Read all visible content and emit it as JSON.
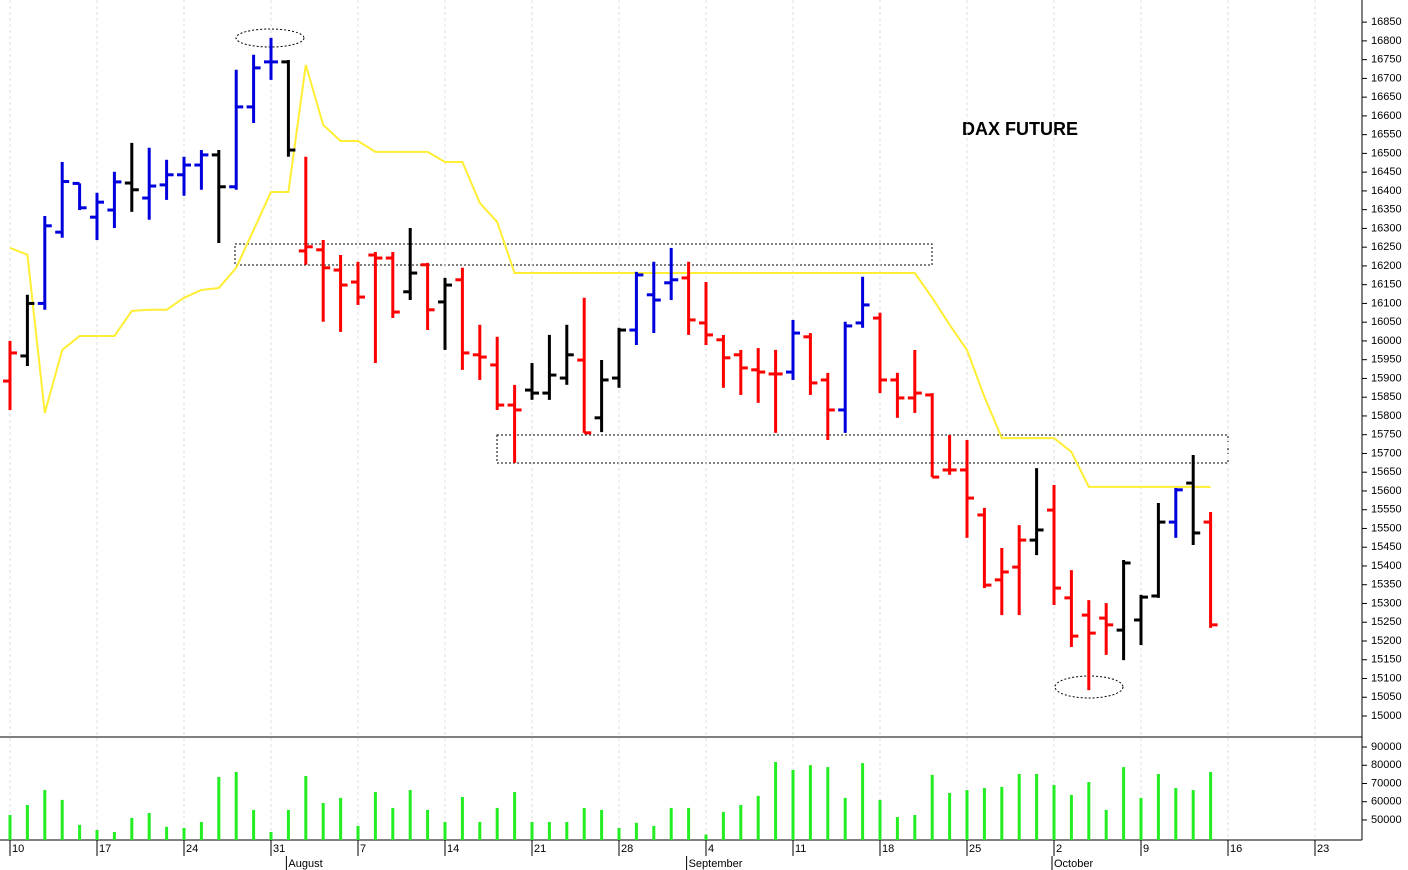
{
  "chart_data": {
    "type": "ohlc",
    "title": "DAX FUTURE",
    "categories": [
      "10",
      null,
      null,
      null,
      null,
      "17",
      null,
      null,
      null,
      null,
      "24",
      null,
      null,
      null,
      null,
      "31",
      null,
      null,
      null,
      null,
      "7",
      null,
      null,
      null,
      null,
      "14",
      null,
      null,
      null,
      null,
      "21",
      null,
      null,
      null,
      null,
      "28",
      null,
      null,
      null,
      null,
      "4",
      null,
      null,
      null,
      null,
      "11",
      null,
      null,
      null,
      null,
      "18",
      null,
      null,
      null,
      null,
      "25",
      null,
      null,
      null,
      null,
      "2",
      null,
      null,
      null,
      null,
      "9",
      null,
      null,
      null,
      null,
      "16",
      null,
      null,
      null,
      null,
      "23",
      null,
      null
    ],
    "months": [
      null,
      null,
      null,
      null,
      null,
      null,
      null,
      null,
      null,
      null,
      null,
      null,
      null,
      null,
      null,
      null,
      "August",
      null,
      null,
      null,
      null,
      null,
      null,
      null,
      null,
      null,
      null,
      null,
      null,
      null,
      null,
      null,
      null,
      null,
      null,
      null,
      null,
      null,
      null,
      "September",
      null,
      null,
      null,
      null,
      null,
      null,
      null,
      null,
      null,
      null,
      null,
      null,
      null,
      null,
      null,
      null,
      null,
      null,
      null,
      null,
      "October",
      null,
      null,
      null,
      null,
      null,
      null,
      null,
      null,
      null,
      null,
      null,
      null,
      null,
      null,
      null,
      null,
      null
    ],
    "ohlc": {
      "open": [
        15893,
        15960,
        16100,
        16290,
        16420,
        16330,
        16349,
        16421,
        16381,
        16416,
        16443,
        16469,
        16496,
        16411,
        16624,
        16744,
        16744,
        16240,
        16243,
        16189,
        16157,
        16229,
        16221,
        16131,
        16203,
        16104,
        16163,
        15963,
        15936,
        15829,
        15869,
        15861,
        15901,
        15949,
        15795,
        15901,
        16029,
        16123,
        16155,
        16168,
        16048,
        16003,
        15963,
        15923,
        15912,
        15917,
        16011,
        15896,
        15816,
        16048,
        16061,
        15896,
        15848,
        15856,
        15656,
        15656,
        15536,
        15363,
        15397,
        15469,
        15549,
        15315,
        15269,
        15261,
        15229,
        15256,
        15320,
        15517,
        15621,
        15517,
        null,
        null,
        null,
        null,
        null,
        null,
        null,
        null
      ],
      "high": [
        16000,
        16123,
        16333,
        16477,
        16420,
        16395,
        16451,
        16528,
        16515,
        16483,
        16491,
        16509,
        16509,
        16723,
        16763,
        16808,
        16749,
        16491,
        16269,
        16229,
        16211,
        16237,
        16237,
        16301,
        16208,
        16168,
        16195,
        16043,
        16011,
        15883,
        15941,
        16016,
        16043,
        16115,
        15949,
        16035,
        16184,
        16211,
        16248,
        16211,
        16157,
        16016,
        15976,
        15981,
        15976,
        16056,
        16021,
        15915,
        16051,
        16171,
        16075,
        15915,
        15976,
        15861,
        15749,
        15736,
        15555,
        15448,
        15509,
        15661,
        15616,
        15389,
        15309,
        15301,
        15416,
        15323,
        15568,
        15608,
        15696,
        15544,
        null,
        null,
        null,
        null,
        null,
        null,
        null,
        null
      ],
      "low": [
        15816,
        15933,
        16083,
        16275,
        16349,
        16269,
        16301,
        16344,
        16323,
        16376,
        16387,
        16403,
        16261,
        16403,
        16581,
        16696,
        16491,
        16203,
        16051,
        16024,
        16096,
        15941,
        16061,
        16109,
        16029,
        15976,
        15923,
        15896,
        15816,
        15675,
        15843,
        15843,
        15883,
        15755,
        15757,
        15875,
        15989,
        16021,
        16109,
        16016,
        15989,
        15875,
        15856,
        15835,
        15755,
        15896,
        15856,
        15736,
        15755,
        16035,
        15861,
        15795,
        15808,
        15637,
        15643,
        15475,
        15341,
        15269,
        15269,
        15429,
        15296,
        15184,
        15069,
        15163,
        15149,
        15189,
        15315,
        15475,
        15456,
        15235,
        null,
        null,
        null,
        null,
        null,
        null,
        null,
        null
      ],
      "close": [
        15968,
        16100,
        16307,
        16425,
        16355,
        16370,
        16424,
        16403,
        16413,
        16443,
        16469,
        16496,
        16411,
        16624,
        16728,
        16744,
        16509,
        16251,
        16195,
        16149,
        16117,
        16221,
        16077,
        16181,
        16083,
        16149,
        15968,
        15957,
        15829,
        15816,
        15861,
        15909,
        15963,
        15755,
        15896,
        16029,
        16176,
        16109,
        16163,
        16056,
        16016,
        15955,
        15928,
        15917,
        15912,
        16021,
        15888,
        15816,
        16040,
        16096,
        15896,
        15848,
        15861,
        15637,
        15656,
        15581,
        15349,
        15384,
        15469,
        15496,
        15341,
        15213,
        15221,
        15243,
        15408,
        15317,
        15517,
        15603,
        15488,
        15243,
        null,
        null,
        null,
        null,
        null,
        null,
        null,
        null
      ],
      "colors": [
        "#ff0000",
        "#000000",
        "#0000dd",
        "#0000dd",
        "#0000dd",
        "#0000dd",
        "#0000dd",
        "#000000",
        "#0000dd",
        "#0000dd",
        "#0000dd",
        "#0000dd",
        "#000000",
        "#0000dd",
        "#0000dd",
        "#0000dd",
        "#000000",
        "#ff0000",
        "#ff0000",
        "#ff0000",
        "#ff0000",
        "#ff0000",
        "#ff0000",
        "#000000",
        "#ff0000",
        "#000000",
        "#ff0000",
        "#ff0000",
        "#ff0000",
        "#ff0000",
        "#000000",
        "#000000",
        "#000000",
        "#ff0000",
        "#000000",
        "#000000",
        "#0000dd",
        "#0000dd",
        "#0000dd",
        "#ff0000",
        "#ff0000",
        "#ff0000",
        "#ff0000",
        "#ff0000",
        "#ff0000",
        "#0000dd",
        "#ff0000",
        "#ff0000",
        "#0000dd",
        "#0000dd",
        "#ff0000",
        "#ff0000",
        "#ff0000",
        "#ff0000",
        "#ff0000",
        "#ff0000",
        "#ff0000",
        "#ff0000",
        "#ff0000",
        "#000000",
        "#ff0000",
        "#ff0000",
        "#ff0000",
        "#ff0000",
        "#000000",
        "#000000",
        "#000000",
        "#0000dd",
        "#000000",
        "#ff0000",
        null,
        null,
        null,
        null,
        null,
        null,
        null,
        null
      ]
    },
    "line": {
      "color": "#ffee33",
      "values": [
        16248,
        16230,
        15808,
        15976,
        16013,
        16013,
        16013,
        16080,
        16083,
        16083,
        16115,
        16136,
        16141,
        16195,
        16296,
        16397,
        16397,
        16736,
        16576,
        16533,
        16533,
        16504,
        16504,
        16504,
        16504,
        16477,
        16477,
        16368,
        16317,
        16181,
        16181,
        16181,
        16181,
        16181,
        16181,
        16181,
        16181,
        16181,
        16181,
        16181,
        16181,
        16181,
        16181,
        16181,
        16181,
        16181,
        16181,
        16181,
        16181,
        16181,
        16181,
        16181,
        16181,
        16115,
        16043,
        15976,
        15851,
        15741,
        15741,
        15741,
        15741,
        15704,
        15611,
        15611,
        15611,
        15611,
        15611,
        15611,
        15611,
        15611,
        null,
        null,
        null,
        null,
        null,
        null,
        null,
        null
      ]
    },
    "volume": {
      "color": "#22ee22",
      "values": [
        52700,
        58200,
        66400,
        61000,
        47300,
        44500,
        43400,
        51100,
        53800,
        46200,
        45600,
        48900,
        73600,
        76300,
        55500,
        43400,
        55500,
        74100,
        59300,
        62100,
        46700,
        65300,
        56600,
        66400,
        55500,
        48900,
        62600,
        48900,
        56600,
        65300,
        48900,
        48900,
        48900,
        56600,
        55500,
        45600,
        48400,
        46700,
        56600,
        56600,
        42000,
        54400,
        58200,
        63200,
        81800,
        77400,
        80100,
        79000,
        62100,
        81200,
        61000,
        51600,
        52700,
        74700,
        64800,
        66400,
        67500,
        68100,
        75200,
        75200,
        69200,
        63700,
        70800,
        55500,
        79000,
        62100,
        75200,
        67500,
        66400,
        76300,
        null,
        null,
        null,
        null,
        null,
        null,
        null,
        null
      ],
      "ylim": [
        39000,
        95500
      ],
      "yticks": [
        50000,
        60000,
        70000,
        80000,
        90000
      ]
    },
    "ylim": [
      14944,
      16909
    ],
    "yticks": [
      15000,
      15050,
      15100,
      15150,
      15200,
      15250,
      15300,
      15350,
      15400,
      15450,
      15500,
      15550,
      15600,
      15650,
      15700,
      15750,
      15800,
      15850,
      15900,
      15950,
      16000,
      16050,
      16100,
      16150,
      16200,
      16250,
      16300,
      16350,
      16400,
      16450,
      16500,
      16550,
      16600,
      16650,
      16700,
      16750,
      16800,
      16850
    ],
    "grid": true
  }
}
